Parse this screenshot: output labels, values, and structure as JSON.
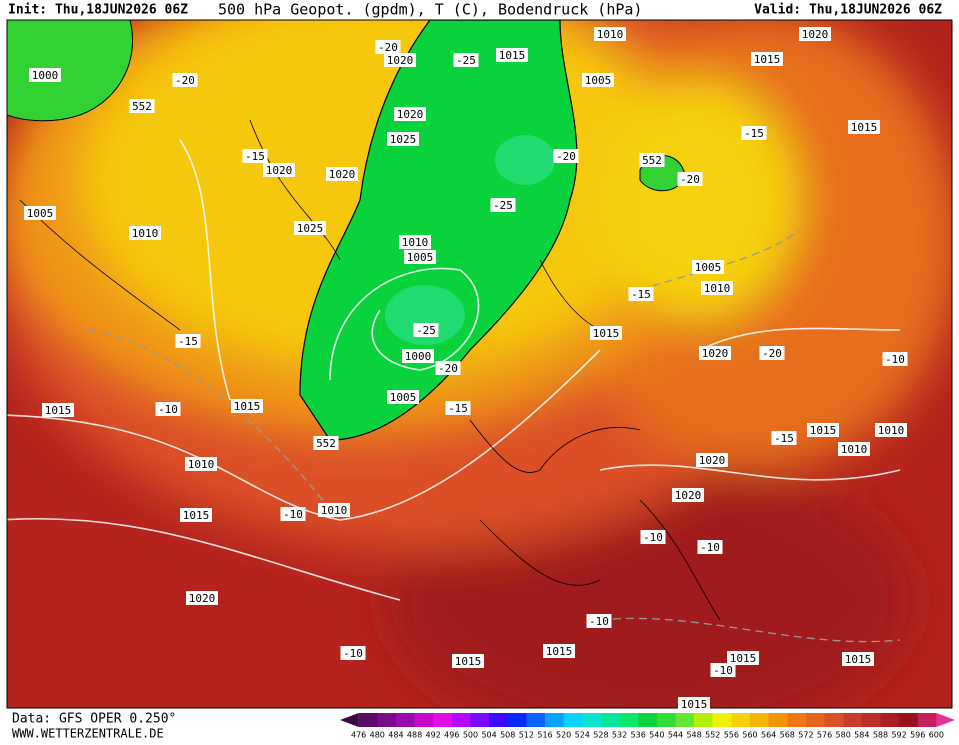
{
  "header": {
    "init": "Init: Thu,18JUN2026 06Z",
    "title": "500 hPa Geopot. (gpdm), T (C), Bodendruck (hPa)",
    "valid": "Valid: Thu,18JUN2026 06Z"
  },
  "footer": {
    "source": "Data: GFS OPER 0.250°",
    "site": "WWW.WETTERZENTRALE.DE"
  },
  "contour_labels": [
    "1000",
    "552",
    "-20",
    "-20",
    "1020",
    "-25",
    "1015",
    "1010",
    "1020",
    "1015",
    "1005",
    "-15",
    "1015",
    "1020",
    "1025",
    "-20",
    "552",
    "-20",
    "-15",
    "1020",
    "1020",
    "1005",
    "-25",
    "1025",
    "1010",
    "1010",
    "1005",
    "1005",
    "1010",
    "-15",
    "-25",
    "1015",
    "-15",
    "1020",
    "-20",
    "-10",
    "1000",
    "-20",
    "1015",
    "-10",
    "1015",
    "1005",
    "-15",
    "552",
    "-15",
    "1015",
    "1010",
    "1010",
    "1020",
    "1010",
    "1020",
    "1015",
    "-10",
    "1010",
    "-10",
    "-10",
    "1020",
    "-10",
    "-10",
    "1015",
    "1015",
    "1015",
    "1015",
    "-10",
    "1015"
  ],
  "colorbar": {
    "labels": [
      476,
      480,
      484,
      488,
      492,
      496,
      500,
      504,
      508,
      512,
      516,
      520,
      524,
      528,
      532,
      536,
      540,
      544,
      548,
      552,
      556,
      560,
      564,
      568,
      572,
      576,
      580,
      584,
      588,
      592,
      596,
      600
    ],
    "colors": [
      "#3a0a3e",
      "#5a0a6a",
      "#7a0a8a",
      "#9a0aaa",
      "#c80ac8",
      "#e60ae6",
      "#b40aff",
      "#780aff",
      "#3c0aff",
      "#0a28ff",
      "#0a64ff",
      "#0aa0ff",
      "#0ad2ff",
      "#0ae6d2",
      "#0ae6a0",
      "#0ae66e",
      "#0ad23c",
      "#32dc32",
      "#64e632",
      "#b4f00a",
      "#f0f00a",
      "#f5d20a",
      "#f5b40a",
      "#f5960a",
      "#f07814",
      "#e6641e",
      "#dc5028",
      "#cd3c28",
      "#be2d28",
      "#aa1e23",
      "#96141e",
      "#c81e5a",
      "#e63296"
    ]
  }
}
